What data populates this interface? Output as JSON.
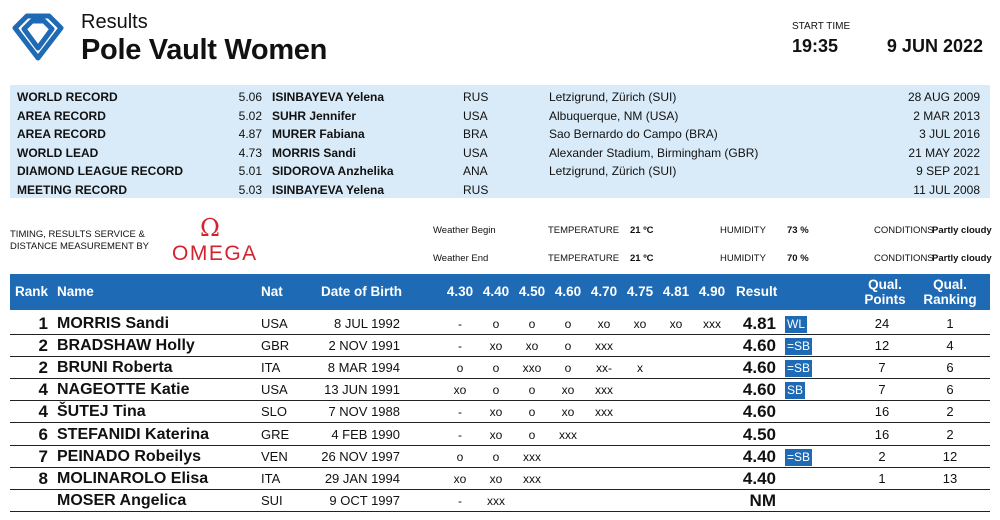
{
  "header": {
    "results_label": "Results",
    "event_title": "Pole Vault Women",
    "start_time_label": "START TIME",
    "start_time": "19:35",
    "date": "9 JUN 2022"
  },
  "records": [
    {
      "type": "WORLD RECORD",
      "mark": "5.06",
      "name": "ISINBAYEVA Yelena",
      "nat": "RUS",
      "venue": "Letzigrund, Zürich (SUI)",
      "date": "28 AUG 2009"
    },
    {
      "type": "AREA RECORD",
      "mark": "5.02",
      "name": "SUHR Jennifer",
      "nat": "USA",
      "venue": "Albuquerque, NM (USA)",
      "date": "2 MAR 2013"
    },
    {
      "type": "AREA RECORD",
      "mark": "4.87",
      "name": "MURER Fabiana",
      "nat": "BRA",
      "venue": "Sao Bernardo do Campo (BRA)",
      "date": "3 JUL 2016"
    },
    {
      "type": "WORLD LEAD",
      "mark": "4.73",
      "name": "MORRIS Sandi",
      "nat": "USA",
      "venue": "Alexander Stadium, Birmingham (GBR)",
      "date": "21 MAY 2022"
    },
    {
      "type": "DIAMOND LEAGUE RECORD",
      "mark": "5.01",
      "name": "SIDOROVA Anzhelika",
      "nat": "ANA",
      "venue": "Letzigrund, Zürich (SUI)",
      "date": "9 SEP 2021"
    },
    {
      "type": "MEETING RECORD",
      "mark": "5.03",
      "name": "ISINBAYEVA Yelena",
      "nat": "RUS",
      "venue": "",
      "date": "11 JUL 2008"
    }
  ],
  "timing": {
    "line1": "TIMING, RESULTS SERVICE &",
    "line2": "DISTANCE MEASUREMENT BY",
    "omega_symbol": "Ω",
    "omega_word": "OMEGA"
  },
  "weather": {
    "begin_label": "Weather Begin",
    "end_label": "Weather End",
    "temperature_label": "TEMPERATURE",
    "humidity_label": "HUMIDITY",
    "conditions_label": "CONDITIONS",
    "begin": {
      "temperature": "21 ºC",
      "humidity": "73 %",
      "conditions": "Partly cloudy"
    },
    "end": {
      "temperature": "21 ºC",
      "humidity": "70 %",
      "conditions": "Partly cloudy"
    }
  },
  "table": {
    "headers": {
      "rank": "Rank",
      "name": "Name",
      "nat": "Nat",
      "dob": "Date of Birth",
      "result": "Result",
      "qual_points_1": "Qual.",
      "qual_points_2": "Points",
      "qual_ranking_1": "Qual.",
      "qual_ranking_2": "Ranking"
    },
    "heights": [
      "4.30",
      "4.40",
      "4.50",
      "4.60",
      "4.70",
      "4.75",
      "4.81",
      "4.90"
    ],
    "rows": [
      {
        "rank": "1",
        "name": "MORRIS Sandi",
        "nat": "USA",
        "dob": "8 JUL 1992",
        "attempts": [
          "-",
          "o",
          "o",
          "o",
          "xo",
          "xo",
          "xo",
          "xxx"
        ],
        "result": "4.81",
        "badge": "WL",
        "qual_points": "24",
        "qual_ranking": "1"
      },
      {
        "rank": "2",
        "name": "BRADSHAW Holly",
        "nat": "GBR",
        "dob": "2 NOV 1991",
        "attempts": [
          "-",
          "xo",
          "xo",
          "o",
          "xxx",
          "",
          "",
          ""
        ],
        "result": "4.60",
        "badge": "=SB",
        "qual_points": "12",
        "qual_ranking": "4"
      },
      {
        "rank": "2",
        "name": "BRUNI Roberta",
        "nat": "ITA",
        "dob": "8 MAR 1994",
        "attempts": [
          "o",
          "o",
          "xxo",
          "o",
          "xx-",
          "x",
          "",
          ""
        ],
        "result": "4.60",
        "badge": "=SB",
        "qual_points": "7",
        "qual_ranking": "6"
      },
      {
        "rank": "4",
        "name": "NAGEOTTE Katie",
        "nat": "USA",
        "dob": "13 JUN 1991",
        "attempts": [
          "xo",
          "o",
          "o",
          "xo",
          "xxx",
          "",
          "",
          ""
        ],
        "result": "4.60",
        "badge": "SB",
        "qual_points": "7",
        "qual_ranking": "6"
      },
      {
        "rank": "4",
        "name": "ŠUTEJ Tina",
        "nat": "SLO",
        "dob": "7 NOV 1988",
        "attempts": [
          "-",
          "xo",
          "o",
          "xo",
          "xxx",
          "",
          "",
          ""
        ],
        "result": "4.60",
        "badge": "",
        "qual_points": "16",
        "qual_ranking": "2"
      },
      {
        "rank": "6",
        "name": "STEFANIDI Katerina",
        "nat": "GRE",
        "dob": "4 FEB 1990",
        "attempts": [
          "-",
          "xo",
          "o",
          "xxx",
          "",
          "",
          "",
          ""
        ],
        "result": "4.50",
        "badge": "",
        "qual_points": "16",
        "qual_ranking": "2"
      },
      {
        "rank": "7",
        "name": "PEINADO Robeilys",
        "nat": "VEN",
        "dob": "26 NOV 1997",
        "attempts": [
          "o",
          "o",
          "xxx",
          "",
          "",
          "",
          "",
          ""
        ],
        "result": "4.40",
        "badge": "=SB",
        "qual_points": "2",
        "qual_ranking": "12"
      },
      {
        "rank": "8",
        "name": "MOLINAROLO Elisa",
        "nat": "ITA",
        "dob": "29 JAN 1994",
        "attempts": [
          "xo",
          "xo",
          "xxx",
          "",
          "",
          "",
          "",
          ""
        ],
        "result": "4.40",
        "badge": "",
        "qual_points": "1",
        "qual_ranking": "13"
      },
      {
        "rank": "",
        "name": "MOSER Angelica",
        "nat": "SUI",
        "dob": "9 OCT 1997",
        "attempts": [
          "-",
          "xxx",
          "",
          "",
          "",
          "",
          "",
          ""
        ],
        "result": "NM",
        "badge": "",
        "qual_points": "",
        "qual_ranking": ""
      }
    ]
  }
}
